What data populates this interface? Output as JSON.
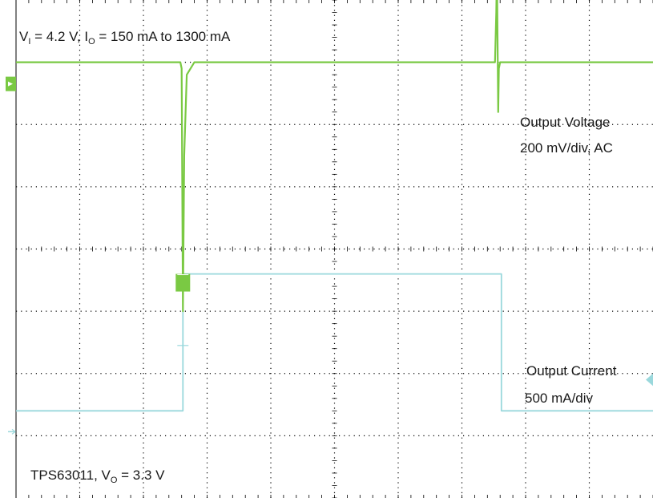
{
  "annotations": {
    "conditions": {
      "v_prefix": "V",
      "v_sub": "I",
      "v_value": " = 4.2 V, ",
      "i_prefix": "I",
      "i_sub": "O",
      "i_value": " = 150 mA to 1300 mA"
    },
    "vout_label": "Output Voltage",
    "vout_scale": "200 mV/div, AC",
    "iout_label": "Output Current",
    "iout_scale": "500 mA/div",
    "part": {
      "name": "TPS63011, ",
      "v_prefix": "V",
      "v_sub": "O",
      "v_value": " = 3.3 V"
    }
  },
  "colors": {
    "voltage": "#7ac943",
    "current": "#9ad8dc",
    "grid": "#000000"
  },
  "chart_data": {
    "type": "line",
    "title": "",
    "xlabel": "",
    "ylabel": "",
    "grid": true,
    "xlim": [
      0,
      10
    ],
    "ylim": [
      -4,
      4
    ],
    "series": [
      {
        "name": "Output Voltage",
        "x": [
          0,
          2.58,
          2.6,
          2.61,
          2.62,
          2.64,
          2.68,
          2.8,
          3.0,
          7.52,
          7.54,
          7.55,
          7.57,
          7.58,
          7.6,
          7.7,
          8.0,
          10
        ],
        "y": [
          3.0,
          3.0,
          2.9,
          1.0,
          -1.0,
          1.5,
          2.8,
          3.0,
          3.0,
          3.0,
          3.8,
          4.5,
          2.2,
          2.9,
          3.0,
          3.0,
          3.0,
          3.0
        ]
      },
      {
        "name": "Output Current",
        "x": [
          0,
          2.62,
          2.62,
          7.62,
          7.62,
          10
        ],
        "y": [
          -2.6,
          -2.6,
          -0.4,
          -0.4,
          -2.6,
          -2.6
        ]
      }
    ]
  }
}
